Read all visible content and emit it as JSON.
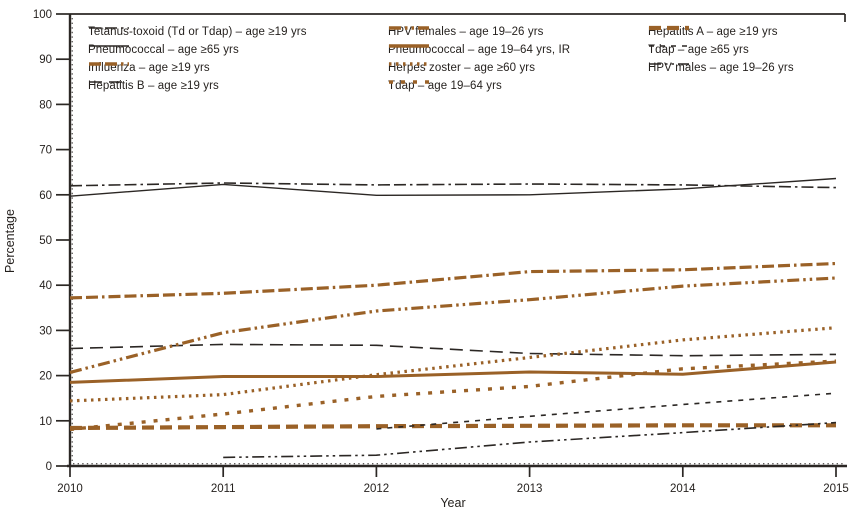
{
  "figure": {
    "x_axis_title": "Year",
    "y_axis_title": "Percentage"
  },
  "chart_data": {
    "type": "line",
    "title": "",
    "xlabel": "Year",
    "ylabel": "Percentage",
    "x": [
      2010,
      2011,
      2012,
      2013,
      2014,
      2015
    ],
    "x_tick_labels": [
      "2010",
      "2011",
      "2012",
      "2013",
      "2014",
      "2015"
    ],
    "ylim": [
      0,
      100
    ],
    "y_ticks": [
      0,
      10,
      20,
      30,
      40,
      50,
      60,
      70,
      80,
      90,
      100
    ],
    "grid": false,
    "legend_position": "inside top, three columns",
    "palette": {
      "black": "#2b2724",
      "brown": "#9a6127"
    },
    "series": [
      {
        "name": "Tetanus-toxoid (Td or Tdap) – age ≥19 yrs",
        "color": "black",
        "line_style": "dash-dash-dot",
        "width": 1.6,
        "values": [
          62.0,
          62.6,
          62.2,
          62.4,
          62.2,
          61.6
        ]
      },
      {
        "name": "Pneumococcal – age ≥65 yrs",
        "color": "black",
        "line_style": "solid",
        "width": 1.4,
        "values": [
          59.7,
          62.3,
          59.9,
          60.0,
          61.3,
          63.6
        ]
      },
      {
        "name": "Influenza – age ≥19 yrs",
        "color": "brown",
        "line_style": "dash-dash-dot",
        "width": 3.2,
        "values": [
          37.2,
          38.2,
          40.0,
          43.0,
          43.4,
          44.8
        ]
      },
      {
        "name": "Hepatitis B – age ≥19 yrs",
        "color": "black",
        "line_style": "long-dash",
        "width": 1.6,
        "values": [
          26.0,
          26.9,
          26.7,
          24.9,
          24.4,
          24.7
        ]
      },
      {
        "name": "HPV females – age 19–26 yrs",
        "color": "brown",
        "line_style": "dash-dot-dot",
        "width": 3.2,
        "values": [
          20.7,
          29.5,
          34.3,
          36.8,
          39.8,
          41.6
        ]
      },
      {
        "name": "Pneumococcal – age 19–64 yrs, IR",
        "color": "brown",
        "line_style": "solid",
        "width": 3.0,
        "values": [
          18.5,
          19.8,
          19.8,
          20.8,
          20.3,
          23.0
        ]
      },
      {
        "name": "Herpes zoster – age ≥60 yrs",
        "color": "brown",
        "line_style": "dotted",
        "width": 3.2,
        "values": [
          14.4,
          15.8,
          20.2,
          24.0,
          27.9,
          30.6
        ]
      },
      {
        "name": "Tdap – age 19–64 yrs",
        "color": "brown",
        "line_style": "square-dash",
        "width": 3.4,
        "values": [
          8.1,
          11.5,
          15.4,
          17.6,
          21.5,
          23.2
        ]
      },
      {
        "name": "Hepatitis A – age ≥19 yrs",
        "color": "brown",
        "line_style": "thick-dash",
        "width": 4.2,
        "values": [
          8.4,
          8.6,
          8.8,
          8.9,
          9.0,
          9.0
        ]
      },
      {
        "name": "Tdap – age ≥65 yrs",
        "color": "black",
        "line_style": "short-dash",
        "width": 1.6,
        "values": [
          null,
          null,
          8.2,
          11.0,
          13.6,
          16.1
        ]
      },
      {
        "name": "HPV males – age 19–26 yrs",
        "color": "black",
        "line_style": "dash-dot-dot",
        "width": 1.6,
        "values": [
          null,
          1.9,
          2.4,
          5.3,
          7.4,
          9.6
        ]
      }
    ],
    "legend_columns": [
      [
        0,
        1,
        2,
        3
      ],
      [
        4,
        5,
        6,
        7
      ],
      [
        8,
        9,
        10
      ]
    ]
  }
}
